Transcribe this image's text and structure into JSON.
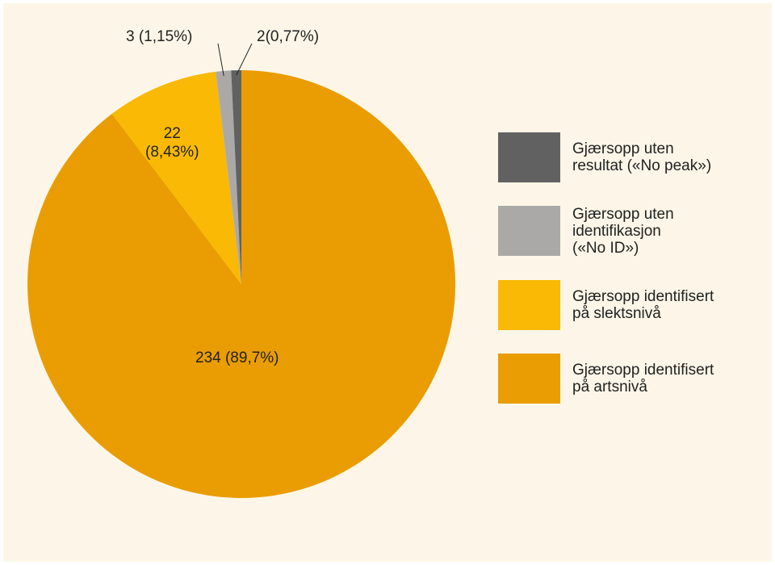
{
  "chart_data": {
    "type": "pie",
    "title": "",
    "slices": [
      {
        "label": "Gjærsopp identifisert på artsnivå",
        "value": 234,
        "percent": 89.7,
        "display": "234 (89,7%)",
        "color": "#e99d02"
      },
      {
        "label": "Gjærsopp identifisert på slektsnivå",
        "value": 22,
        "percent": 8.43,
        "display_lines": [
          "22",
          "(8,43%)"
        ],
        "color": "#f9b904"
      },
      {
        "label": "Gjærsopp uten identifikasjon («No ID»)",
        "value": 3,
        "percent": 1.15,
        "display": "3 (1,15%)",
        "color": "#aba9a7"
      },
      {
        "label": "Gjærsopp uten resultat («No peak»)",
        "value": 2,
        "percent": 0.77,
        "display": "2(0,77%)",
        "color": "#626162"
      }
    ],
    "legend": {
      "placement": "right",
      "items": [
        {
          "text": "Gjærsopp uten\nresultat («No peak»)",
          "color": "#626162"
        },
        {
          "text": "Gjærsopp uten\nidentifikasjon\n(«No ID»)",
          "color": "#aba9a7"
        },
        {
          "text": "Gjærsopp identifisert\npå slektsnivå",
          "color": "#f9b904"
        },
        {
          "text": "Gjærsopp identifisert\npå artsnivå",
          "color": "#e99d02"
        }
      ]
    }
  },
  "colors": {
    "background": "#fdf6e8",
    "leader_line": "#222222"
  }
}
